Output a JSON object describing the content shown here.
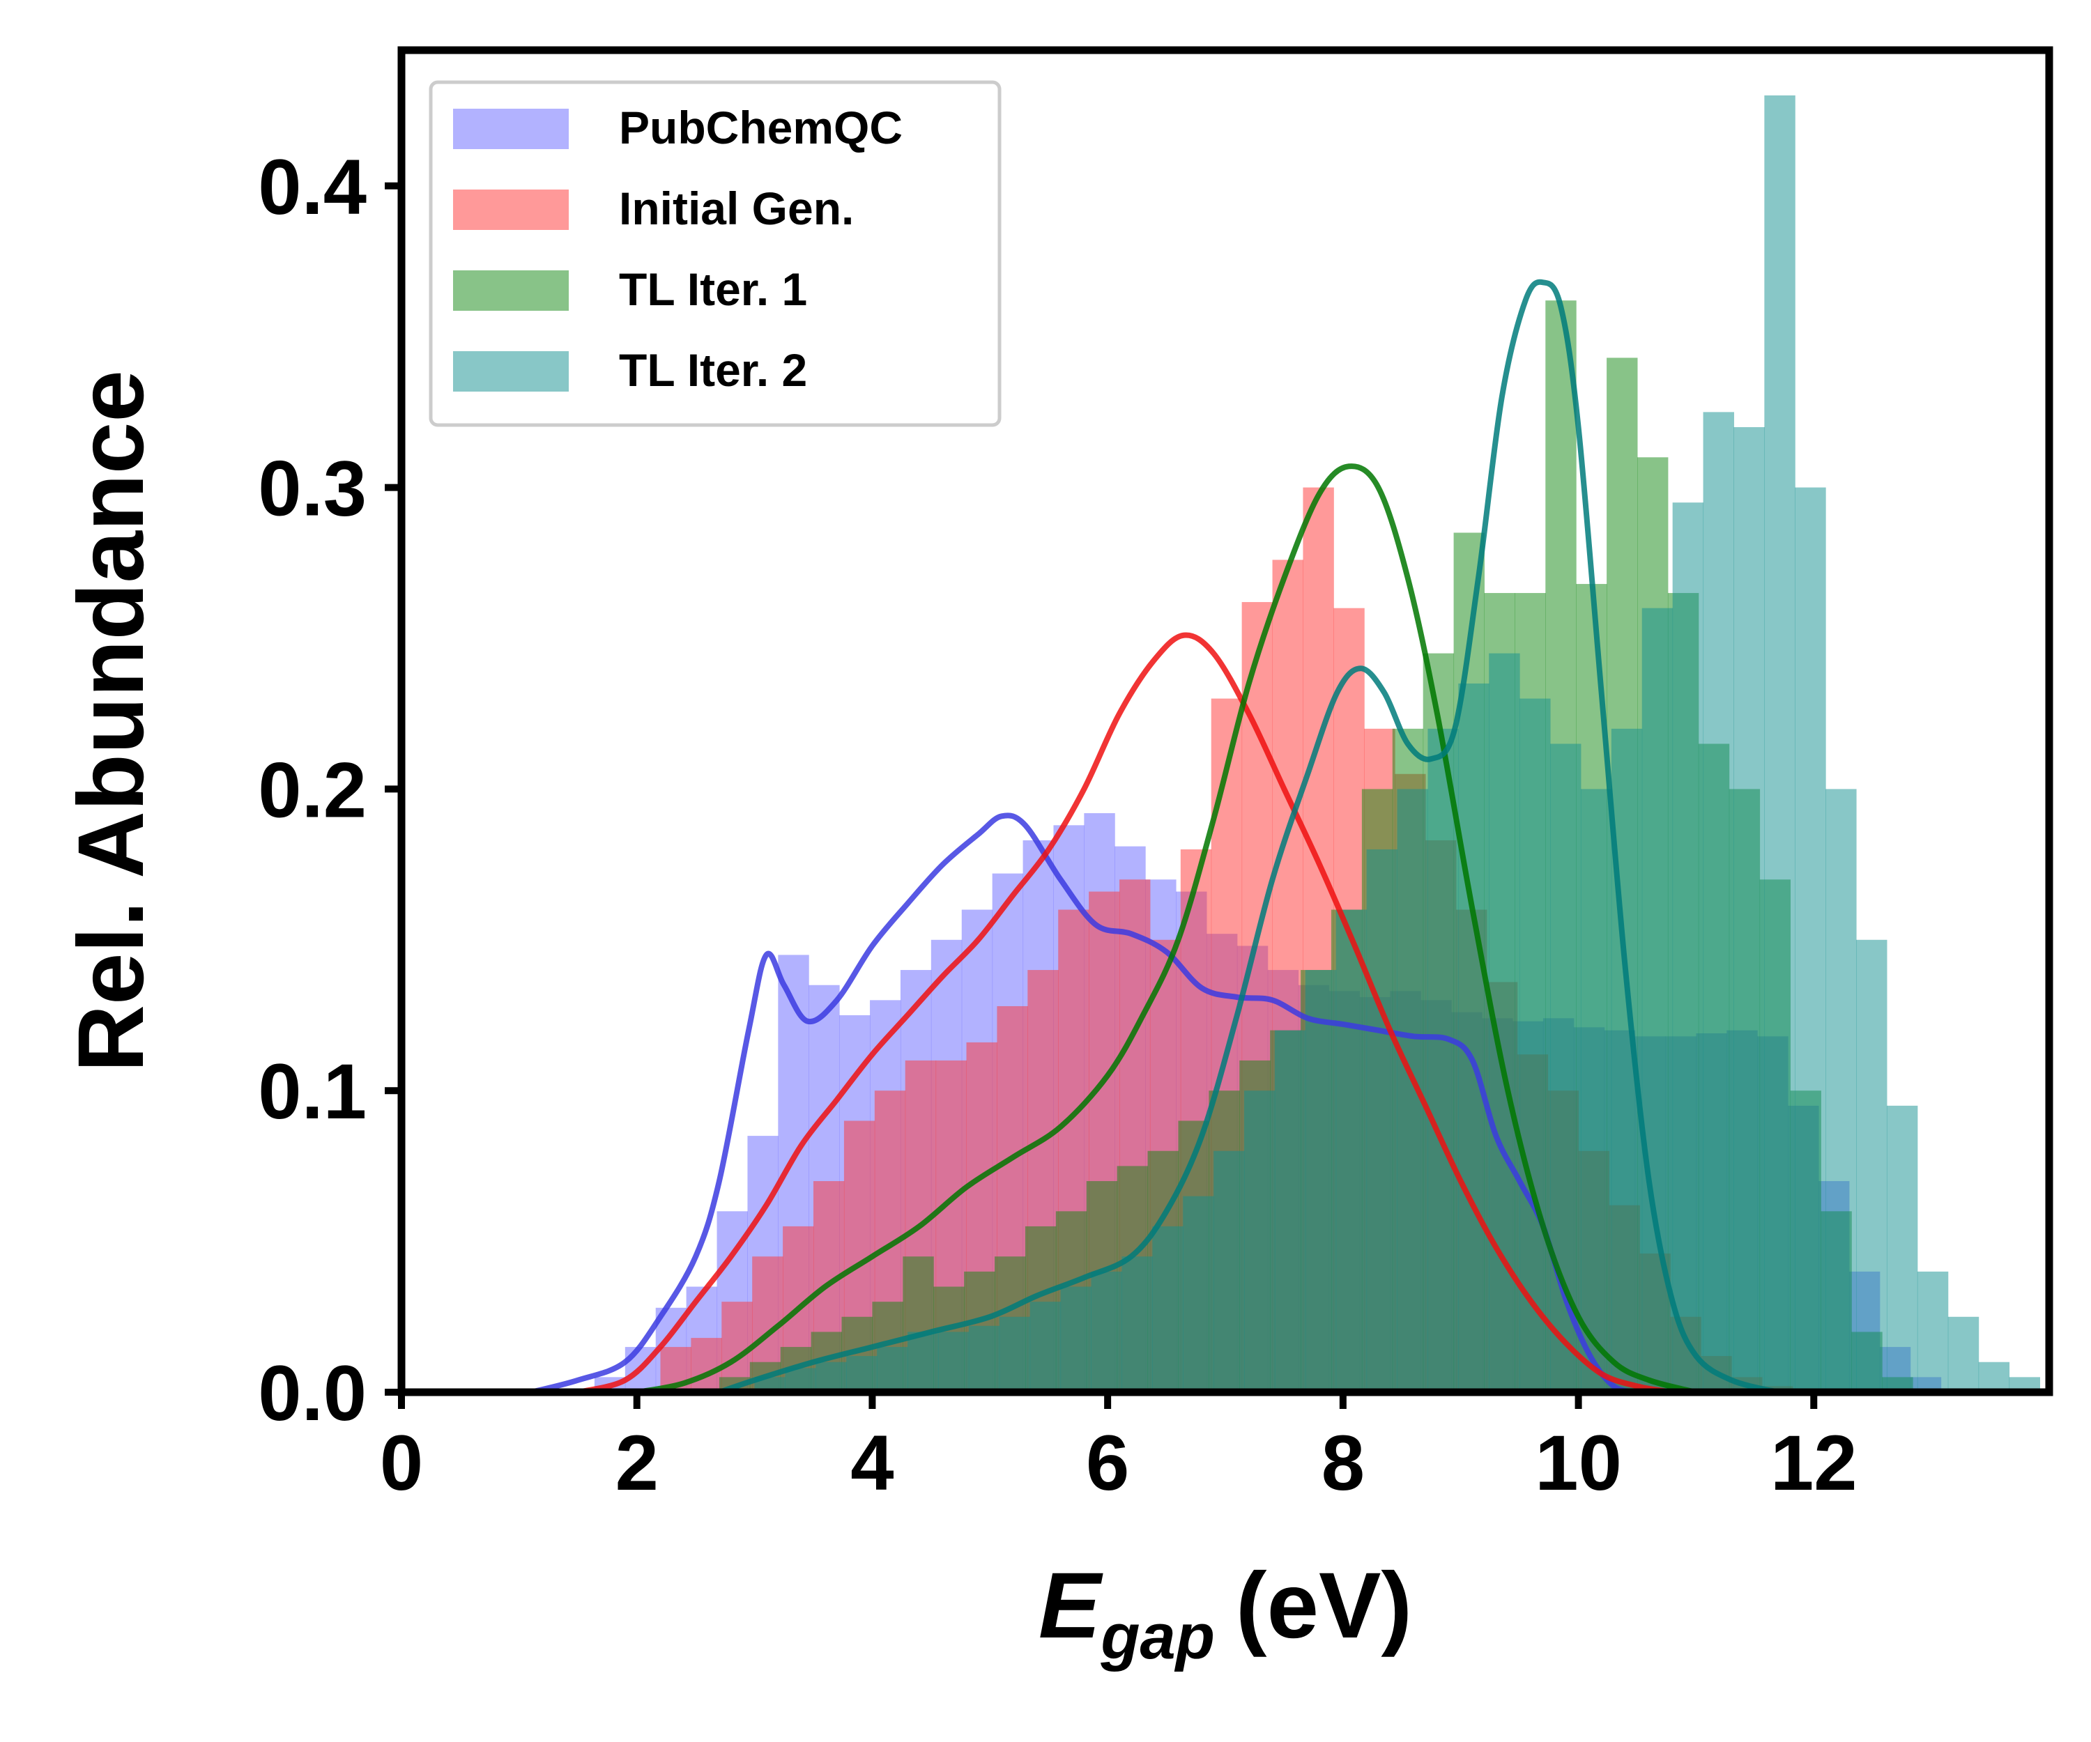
{
  "chart_data": {
    "type": "bar",
    "xlabel_main": "E",
    "xlabel_sub": "gap",
    "xlabel_unit": "(eV)",
    "ylabel": "Rel. Abundance",
    "xlim": [
      0,
      14.0
    ],
    "ylim": [
      0,
      0.445
    ],
    "xticks": [
      0,
      2,
      4,
      6,
      8,
      10,
      12
    ],
    "yticks": [
      0.0,
      0.1,
      0.2,
      0.3,
      0.4
    ],
    "xtick_labels": [
      "0",
      "2",
      "4",
      "6",
      "8",
      "10",
      "12"
    ],
    "ytick_labels": [
      "0.0",
      "0.1",
      "0.2",
      "0.3",
      "0.4"
    ],
    "legend_position": "top-left",
    "series": [
      {
        "name": "PubChemQC",
        "color": "#6666ff",
        "line_color": "#3b3be0",
        "bins": {
          "start": 1.64,
          "width": 0.26,
          "values": [
            0.005,
            0.015,
            0.028,
            0.035,
            0.06,
            0.085,
            0.145,
            0.135,
            0.125,
            0.13,
            0.14,
            0.15,
            0.16,
            0.172,
            0.183,
            0.188,
            0.192,
            0.181,
            0.17,
            0.166,
            0.152,
            0.148,
            0.14,
            0.135,
            0.133,
            0.131,
            0.133,
            0.13,
            0.126,
            0.124,
            0.123,
            0.124,
            0.121,
            0.12,
            0.118,
            0.118,
            0.119,
            0.12,
            0.118,
            0.095,
            0.07,
            0.04,
            0.015,
            0.005
          ]
        },
        "kde": [
          [
            1.1,
            0
          ],
          [
            1.5,
            0.004
          ],
          [
            1.9,
            0.01
          ],
          [
            2.2,
            0.025
          ],
          [
            2.5,
            0.045
          ],
          [
            2.7,
            0.07
          ],
          [
            2.95,
            0.12
          ],
          [
            3.1,
            0.145
          ],
          [
            3.25,
            0.135
          ],
          [
            3.45,
            0.123
          ],
          [
            3.7,
            0.13
          ],
          [
            4.0,
            0.148
          ],
          [
            4.3,
            0.162
          ],
          [
            4.6,
            0.175
          ],
          [
            4.9,
            0.185
          ],
          [
            5.1,
            0.191
          ],
          [
            5.3,
            0.188
          ],
          [
            5.6,
            0.17
          ],
          [
            5.9,
            0.155
          ],
          [
            6.2,
            0.152
          ],
          [
            6.5,
            0.146
          ],
          [
            6.8,
            0.134
          ],
          [
            7.1,
            0.131
          ],
          [
            7.4,
            0.13
          ],
          [
            7.7,
            0.124
          ],
          [
            8.0,
            0.122
          ],
          [
            8.3,
            0.12
          ],
          [
            8.6,
            0.118
          ],
          [
            8.9,
            0.117
          ],
          [
            9.1,
            0.11
          ],
          [
            9.3,
            0.085
          ],
          [
            9.5,
            0.07
          ],
          [
            9.7,
            0.055
          ],
          [
            9.9,
            0.03
          ],
          [
            10.1,
            0.012
          ],
          [
            10.3,
            0.002
          ],
          [
            10.5,
            0
          ]
        ]
      },
      {
        "name": "Initial Gen.",
        "color": "#ff3333",
        "line_color": "#ee1111",
        "bins": {
          "start": 2.2,
          "width": 0.26,
          "values": [
            0.015,
            0.018,
            0.03,
            0.045,
            0.055,
            0.07,
            0.09,
            0.1,
            0.11,
            0.11,
            0.116,
            0.128,
            0.14,
            0.16,
            0.166,
            0.17,
            0.15,
            0.18,
            0.23,
            0.262,
            0.276,
            0.3,
            0.26,
            0.22,
            0.205,
            0.183,
            0.16,
            0.136,
            0.112,
            0.1,
            0.08,
            0.062,
            0.046,
            0.025,
            0.012,
            0.005,
            0.002
          ]
        },
        "kde": [
          [
            1.5,
            0
          ],
          [
            1.9,
            0.004
          ],
          [
            2.2,
            0.015
          ],
          [
            2.5,
            0.03
          ],
          [
            2.8,
            0.045
          ],
          [
            3.1,
            0.062
          ],
          [
            3.4,
            0.082
          ],
          [
            3.7,
            0.097
          ],
          [
            4.0,
            0.112
          ],
          [
            4.3,
            0.125
          ],
          [
            4.6,
            0.138
          ],
          [
            4.9,
            0.15
          ],
          [
            5.2,
            0.165
          ],
          [
            5.5,
            0.18
          ],
          [
            5.8,
            0.2
          ],
          [
            6.1,
            0.225
          ],
          [
            6.4,
            0.243
          ],
          [
            6.65,
            0.251
          ],
          [
            6.9,
            0.245
          ],
          [
            7.2,
            0.225
          ],
          [
            7.5,
            0.2
          ],
          [
            7.8,
            0.175
          ],
          [
            8.1,
            0.148
          ],
          [
            8.4,
            0.12
          ],
          [
            8.7,
            0.095
          ],
          [
            9.0,
            0.07
          ],
          [
            9.3,
            0.048
          ],
          [
            9.6,
            0.03
          ],
          [
            9.9,
            0.016
          ],
          [
            10.2,
            0.006
          ],
          [
            10.5,
            0.002
          ],
          [
            10.8,
            0
          ]
        ]
      },
      {
        "name": "TL Iter. 1",
        "color": "#118811",
        "line_color": "#007700",
        "bins": {
          "start": 2.7,
          "width": 0.26,
          "values": [
            0.005,
            0.01,
            0.015,
            0.02,
            0.025,
            0.03,
            0.045,
            0.035,
            0.04,
            0.045,
            0.055,
            0.06,
            0.07,
            0.075,
            0.08,
            0.09,
            0.1,
            0.11,
            0.12,
            0.14,
            0.16,
            0.2,
            0.22,
            0.245,
            0.285,
            0.265,
            0.265,
            0.362,
            0.268,
            0.343,
            0.31,
            0.265,
            0.215,
            0.2,
            0.17,
            0.1,
            0.06,
            0.02,
            0.005
          ]
        },
        "kde": [
          [
            2.0,
            0
          ],
          [
            2.4,
            0.003
          ],
          [
            2.8,
            0.01
          ],
          [
            3.2,
            0.022
          ],
          [
            3.6,
            0.035
          ],
          [
            4.0,
            0.045
          ],
          [
            4.4,
            0.055
          ],
          [
            4.8,
            0.068
          ],
          [
            5.2,
            0.078
          ],
          [
            5.6,
            0.088
          ],
          [
            6.0,
            0.105
          ],
          [
            6.3,
            0.125
          ],
          [
            6.6,
            0.15
          ],
          [
            6.9,
            0.19
          ],
          [
            7.2,
            0.235
          ],
          [
            7.5,
            0.27
          ],
          [
            7.8,
            0.298
          ],
          [
            8.05,
            0.307
          ],
          [
            8.3,
            0.3
          ],
          [
            8.55,
            0.27
          ],
          [
            8.8,
            0.225
          ],
          [
            9.1,
            0.16
          ],
          [
            9.4,
            0.1
          ],
          [
            9.7,
            0.055
          ],
          [
            10.0,
            0.025
          ],
          [
            10.3,
            0.01
          ],
          [
            10.6,
            0.004
          ],
          [
            11.0,
            0
          ]
        ]
      },
      {
        "name": "TL Iter. 2",
        "color": "#118f8f",
        "line_color": "#007b7b",
        "bins": {
          "start": 3.0,
          "width": 0.26,
          "values": [
            0.005,
            0.008,
            0.01,
            0.012,
            0.015,
            0.02,
            0.02,
            0.022,
            0.025,
            0.03,
            0.035,
            0.04,
            0.045,
            0.055,
            0.065,
            0.08,
            0.1,
            0.12,
            0.14,
            0.16,
            0.18,
            0.2,
            0.22,
            0.235,
            0.245,
            0.23,
            0.215,
            0.2,
            0.22,
            0.26,
            0.295,
            0.325,
            0.32,
            0.43,
            0.3,
            0.2,
            0.15,
            0.095,
            0.04,
            0.025,
            0.01,
            0.005
          ]
        },
        "kde": [
          [
            2.7,
            0
          ],
          [
            3.0,
            0.004
          ],
          [
            3.5,
            0.01
          ],
          [
            4.0,
            0.015
          ],
          [
            4.5,
            0.02
          ],
          [
            5.0,
            0.025
          ],
          [
            5.4,
            0.032
          ],
          [
            5.8,
            0.038
          ],
          [
            6.2,
            0.045
          ],
          [
            6.5,
            0.06
          ],
          [
            6.8,
            0.085
          ],
          [
            7.1,
            0.125
          ],
          [
            7.4,
            0.17
          ],
          [
            7.7,
            0.205
          ],
          [
            7.95,
            0.232
          ],
          [
            8.15,
            0.24
          ],
          [
            8.35,
            0.232
          ],
          [
            8.55,
            0.215
          ],
          [
            8.75,
            0.21
          ],
          [
            8.95,
            0.22
          ],
          [
            9.15,
            0.27
          ],
          [
            9.35,
            0.33
          ],
          [
            9.55,
            0.362
          ],
          [
            9.7,
            0.368
          ],
          [
            9.85,
            0.36
          ],
          [
            10.0,
            0.32
          ],
          [
            10.2,
            0.23
          ],
          [
            10.4,
            0.14
          ],
          [
            10.6,
            0.07
          ],
          [
            10.8,
            0.03
          ],
          [
            11.0,
            0.012
          ],
          [
            11.3,
            0.004
          ],
          [
            11.7,
            0
          ]
        ]
      }
    ]
  }
}
